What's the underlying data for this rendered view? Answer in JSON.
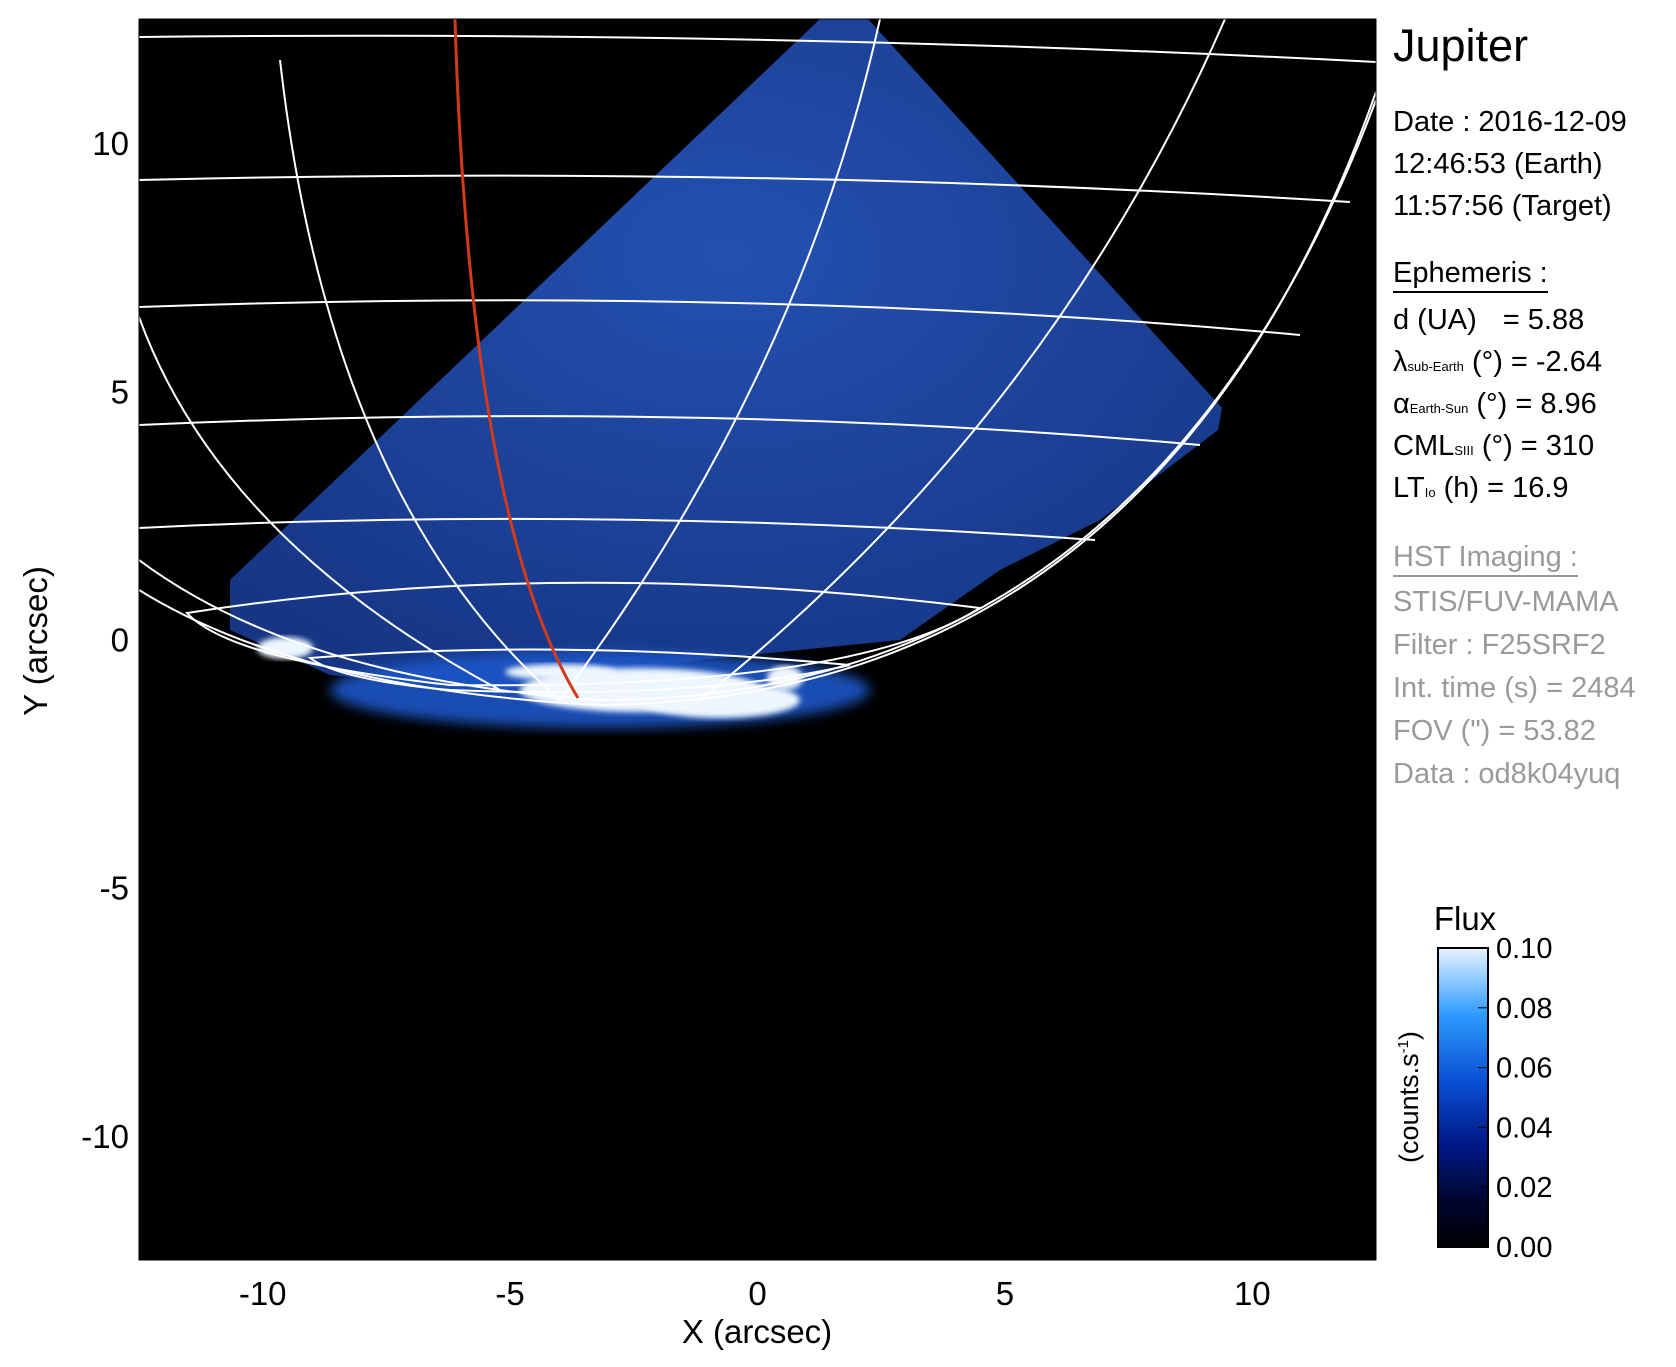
{
  "chart_data": {
    "type": "image",
    "target": "Jupiter",
    "xlabel": "X (arcsec)",
    "ylabel": "Y (arcsec)",
    "xlim": [
      -12.5,
      12.5
    ],
    "ylim": [
      -12.5,
      12.5
    ],
    "xticks": [
      -10,
      -5,
      0,
      5,
      10
    ],
    "yticks": [
      -10,
      -5,
      0,
      5,
      10
    ],
    "colorbar": {
      "title": "Flux",
      "label": "(counts.s",
      "label_sup": "-1",
      "label_end": ")",
      "range": [
        0.0,
        0.1
      ],
      "ticks": [
        "0.00",
        "0.02",
        "0.04",
        "0.06",
        "0.08",
        "0.10"
      ],
      "colors": [
        "#000000",
        "#00052e",
        "#001a8a",
        "#0a4fd2",
        "#2f9cff",
        "#e8f4ff"
      ]
    },
    "colors": {
      "background": "#000000",
      "disk": "#1f4fb8",
      "aurora": "#eef6ff",
      "grid": "#ffffff",
      "footpath": "#d23a1a"
    }
  },
  "info": {
    "title": "Jupiter",
    "date": "Date : 2016-12-09",
    "earth_time": "12:46:53 (Earth)",
    "target_time": "11:57:56 (Target)",
    "ephemeris_header": "Ephemeris :",
    "d_label": "d (UA)",
    "d_value": "= 5.88",
    "lambda_sym": "λ",
    "lambda_sub": "sub-Earth",
    "lambda_rest": "(°) = -2.64",
    "alpha_sym": "α",
    "alpha_sub": "Earth-Sun",
    "alpha_rest": "(°) = 8.96",
    "cml_sym": "CML",
    "cml_sub": "SIII",
    "cml_rest": "(°) = 310",
    "lt_sym": "LT",
    "lt_sub": "Io",
    "lt_rest": "(h) = 16.9",
    "hst_header": "HST Imaging :",
    "instrument": "STIS/FUV-MAMA",
    "filter": "Filter : F25SRF2",
    "int_time": "Int. time (s) = 2484",
    "fov": "FOV (\") = 53.82",
    "dataset": "Data : od8k04yuq"
  }
}
